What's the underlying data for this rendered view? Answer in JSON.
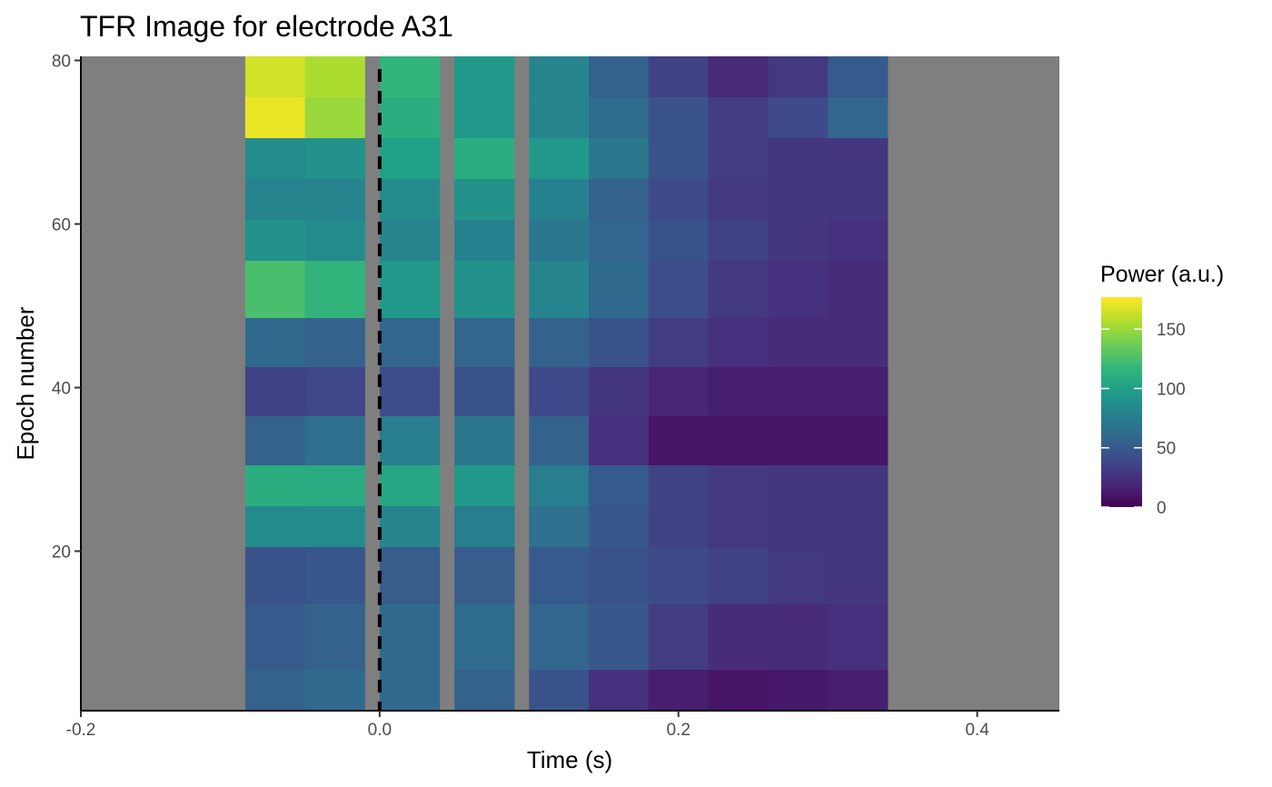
{
  "chart_data": {
    "type": "heatmap",
    "title": "TFR Image for electrode A31",
    "xlabel": "Time (s)",
    "ylabel": "Epoch number",
    "xlim": [
      -0.2,
      0.455
    ],
    "ylim": [
      0.5,
      80.5
    ],
    "x_ticks": [
      {
        "value": -0.2,
        "label": "-0.2"
      },
      {
        "value": 0.0,
        "label": "0.0"
      },
      {
        "value": 0.2,
        "label": "0.2"
      },
      {
        "value": 0.4,
        "label": "0.4"
      }
    ],
    "y_ticks": [
      {
        "value": 20,
        "label": "20"
      },
      {
        "value": 40,
        "label": "40"
      },
      {
        "value": 60,
        "label": "60"
      },
      {
        "value": 80,
        "label": "80"
      }
    ],
    "time_values": [
      -0.07,
      -0.03,
      0.02,
      0.07,
      0.12,
      0.16,
      0.2,
      0.24,
      0.28,
      0.32
    ],
    "epoch_bands": [
      {
        "from": 76,
        "to": 80,
        "power": [
          165,
          155,
          115,
          95,
          80,
          55,
          35,
          20,
          30,
          50
        ]
      },
      {
        "from": 71,
        "to": 75,
        "power": [
          172,
          150,
          110,
          95,
          80,
          62,
          45,
          32,
          40,
          58
        ]
      },
      {
        "from": 66,
        "to": 70,
        "power": [
          85,
          90,
          100,
          110,
          95,
          70,
          45,
          32,
          28,
          28
        ]
      },
      {
        "from": 61,
        "to": 65,
        "power": [
          80,
          80,
          85,
          90,
          78,
          55,
          40,
          30,
          28,
          28
        ]
      },
      {
        "from": 56,
        "to": 60,
        "power": [
          90,
          85,
          80,
          78,
          70,
          58,
          45,
          35,
          28,
          25
        ]
      },
      {
        "from": 49,
        "to": 55,
        "power": [
          125,
          115,
          95,
          90,
          80,
          60,
          42,
          30,
          25,
          22
        ]
      },
      {
        "from": 43,
        "to": 48,
        "power": [
          60,
          55,
          58,
          58,
          55,
          45,
          32,
          25,
          22,
          22
        ]
      },
      {
        "from": 37,
        "to": 42,
        "power": [
          35,
          38,
          42,
          45,
          40,
          28,
          18,
          15,
          15,
          15
        ]
      },
      {
        "from": 31,
        "to": 36,
        "power": [
          55,
          65,
          75,
          70,
          55,
          25,
          10,
          10,
          10,
          10
        ]
      },
      {
        "from": 26,
        "to": 30,
        "power": [
          110,
          108,
          105,
          95,
          75,
          50,
          35,
          30,
          28,
          28
        ]
      },
      {
        "from": 21,
        "to": 25,
        "power": [
          85,
          85,
          80,
          75,
          65,
          48,
          35,
          30,
          28,
          28
        ]
      },
      {
        "from": 14,
        "to": 20,
        "power": [
          45,
          48,
          52,
          52,
          50,
          45,
          40,
          35,
          30,
          28
        ]
      },
      {
        "from": 6,
        "to": 13,
        "power": [
          50,
          55,
          60,
          62,
          58,
          48,
          32,
          22,
          22,
          25
        ]
      },
      {
        "from": 1,
        "to": 5,
        "power": [
          55,
          60,
          60,
          55,
          45,
          25,
          15,
          10,
          12,
          15
        ]
      }
    ],
    "stimulus_onset": 0.0,
    "legend": {
      "title": "Power (a.u.)",
      "placement": "right",
      "min": 0,
      "max": 177,
      "ticks": [
        0,
        50,
        100,
        150
      ],
      "colormap": "viridis"
    },
    "panel_background": "#7f7f7f",
    "grid": false
  }
}
